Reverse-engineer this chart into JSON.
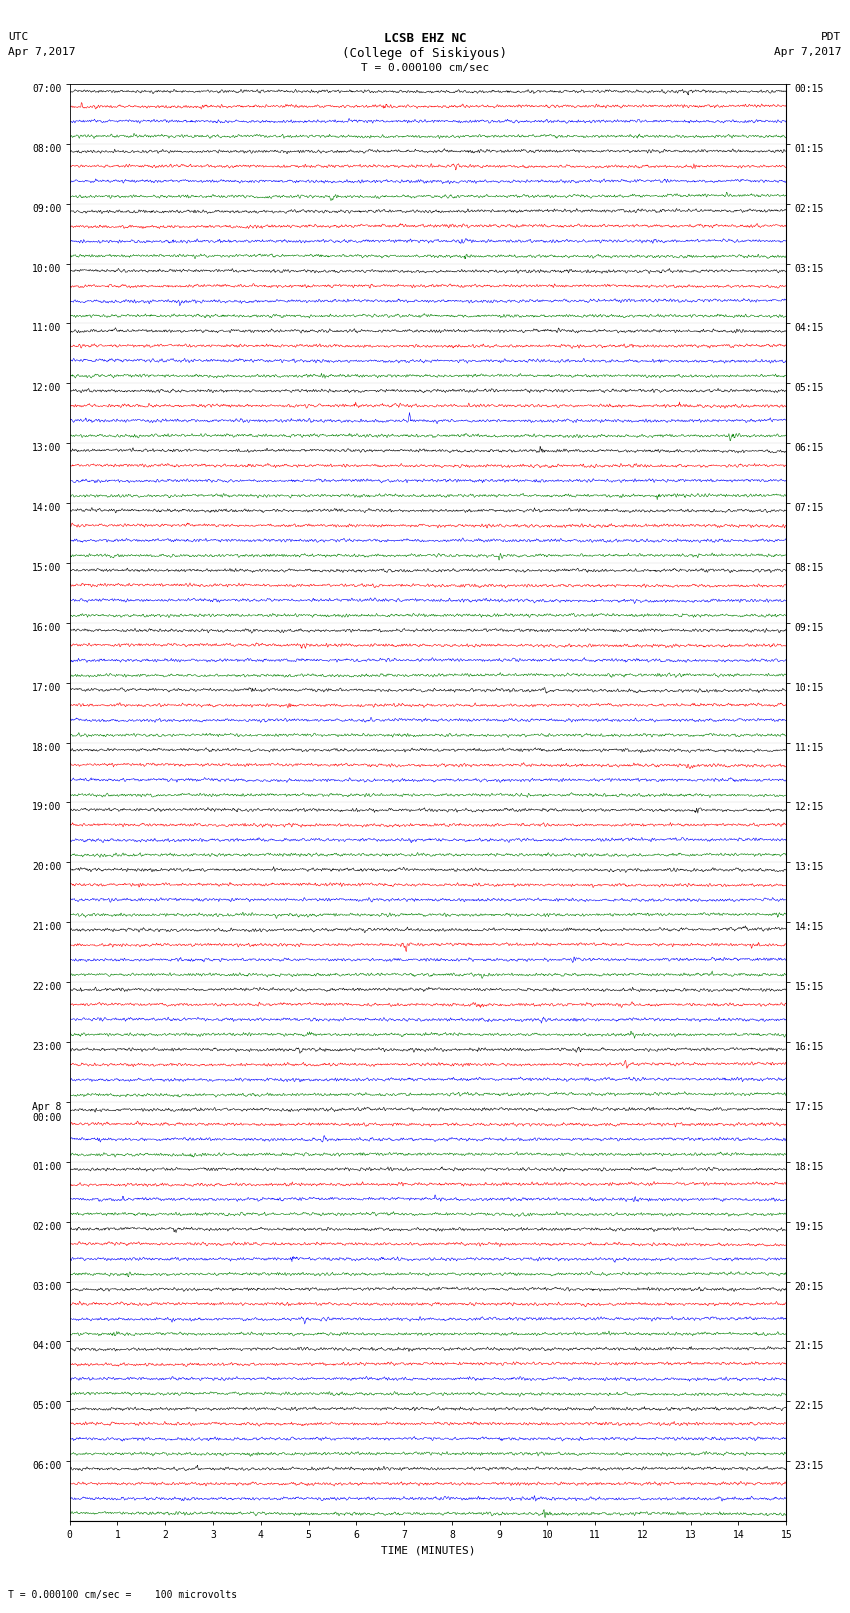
{
  "title_line1": "LCSB EHZ NC",
  "title_line2": "(College of Siskiyous)",
  "title_line3": "T = 0.000100 cm/sec",
  "utc_label": "UTC",
  "utc_date": "Apr 7,2017",
  "pdt_label": "PDT",
  "pdt_date": "Apr 7,2017",
  "xlabel": "TIME (MINUTES)",
  "footer_symbol": "T",
  "footer_text": " = 0.000100 cm/sec =    100 microvolts",
  "left_times": [
    "07:00",
    "08:00",
    "09:00",
    "10:00",
    "11:00",
    "12:00",
    "13:00",
    "14:00",
    "15:00",
    "16:00",
    "17:00",
    "18:00",
    "19:00",
    "20:00",
    "21:00",
    "22:00",
    "23:00",
    "Apr 8\n00:00",
    "01:00",
    "02:00",
    "03:00",
    "04:00",
    "05:00",
    "06:00"
  ],
  "right_times": [
    "00:15",
    "01:15",
    "02:15",
    "03:15",
    "04:15",
    "05:15",
    "06:15",
    "07:15",
    "08:15",
    "09:15",
    "10:15",
    "11:15",
    "12:15",
    "13:15",
    "14:15",
    "15:15",
    "16:15",
    "17:15",
    "18:15",
    "19:15",
    "20:15",
    "21:15",
    "22:15",
    "23:15"
  ],
  "colors": [
    "black",
    "red",
    "blue",
    "green"
  ],
  "num_hour_rows": 24,
  "traces_per_hour": 4,
  "minutes_per_row": 15,
  "figsize": [
    8.5,
    16.13
  ],
  "dpi": 100,
  "bg_color": "#ffffff",
  "noise_seed": 42,
  "base_amplitude": 0.08,
  "event_amplitude": 0.35
}
